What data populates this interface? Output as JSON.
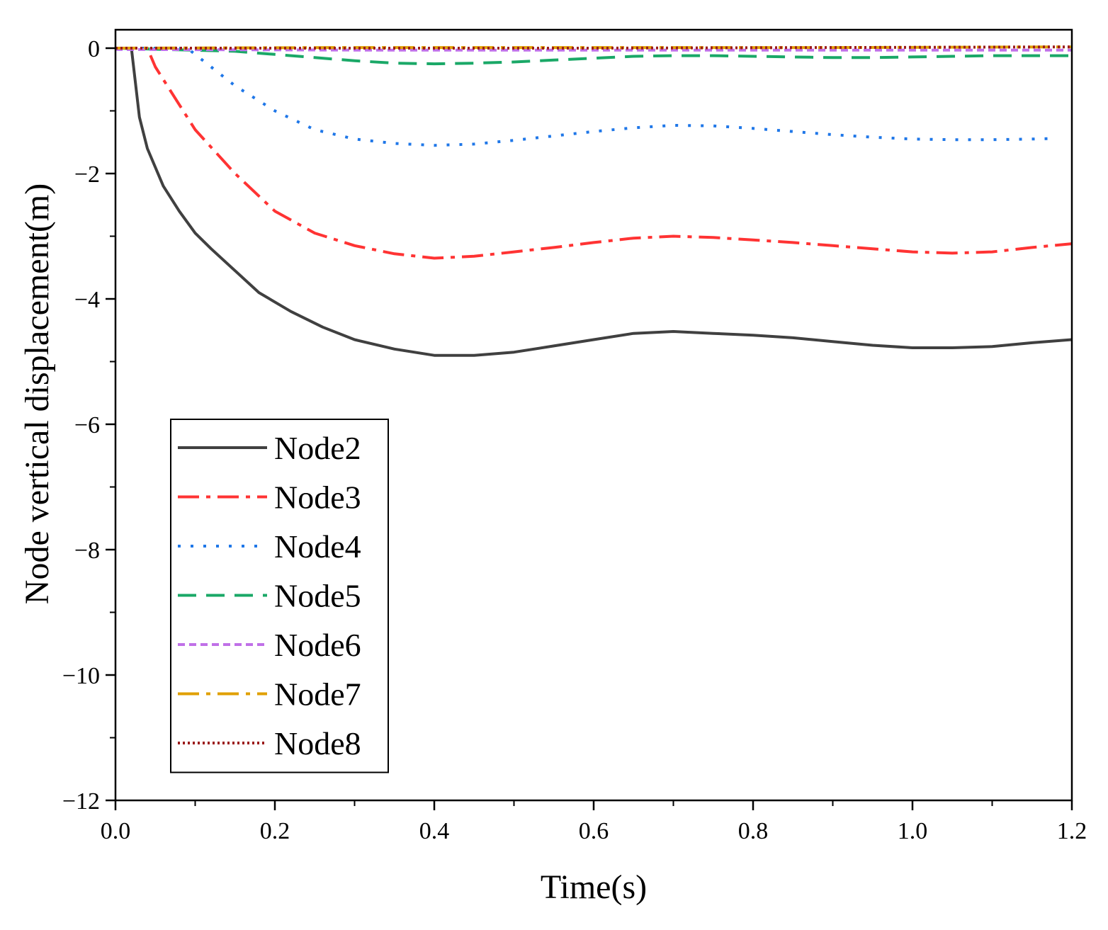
{
  "chart_data": {
    "type": "line",
    "title": "",
    "xlabel": "Time(s)",
    "ylabel": "Node vertical displacement(m)",
    "xlim": [
      0.0,
      1.2
    ],
    "ylim": [
      -12,
      0.4
    ],
    "grid": false,
    "legend_position": "bottom-left",
    "x_ticks": [
      {
        "value": 0.0,
        "label": "0.0"
      },
      {
        "value": 0.2,
        "label": "0.2"
      },
      {
        "value": 0.4,
        "label": "0.4"
      },
      {
        "value": 0.6,
        "label": "0.6"
      },
      {
        "value": 0.8,
        "label": "0.8"
      },
      {
        "value": 1.0,
        "label": "1.0"
      },
      {
        "value": 1.2,
        "label": "1.2"
      }
    ],
    "x_minor_ticks": [
      0.1,
      0.3,
      0.5,
      0.7,
      0.9,
      1.1
    ],
    "y_ticks": [
      {
        "value": 0,
        "label": "0"
      },
      {
        "value": -2,
        "label": "−2"
      },
      {
        "value": -4,
        "label": "−4"
      },
      {
        "value": -6,
        "label": "−6"
      },
      {
        "value": -8,
        "label": "−8"
      },
      {
        "value": -10,
        "label": "−10"
      },
      {
        "value": -12,
        "label": "−12"
      }
    ],
    "y_minor_ticks": [
      -1,
      -3,
      -5,
      -7,
      -9,
      -11
    ],
    "series": [
      {
        "name": "Node2",
        "color": "#404040",
        "dash": "solid",
        "x": [
          0.0,
          0.02,
          0.03,
          0.04,
          0.06,
          0.08,
          0.1,
          0.12,
          0.15,
          0.18,
          0.22,
          0.26,
          0.3,
          0.35,
          0.4,
          0.45,
          0.5,
          0.55,
          0.6,
          0.65,
          0.7,
          0.75,
          0.8,
          0.85,
          0.9,
          0.95,
          1.0,
          1.05,
          1.1,
          1.15,
          1.2
        ],
        "y": [
          0.0,
          0.0,
          -1.1,
          -1.6,
          -2.2,
          -2.6,
          -2.95,
          -3.2,
          -3.55,
          -3.9,
          -4.2,
          -4.45,
          -4.65,
          -4.8,
          -4.9,
          -4.9,
          -4.85,
          -4.75,
          -4.65,
          -4.55,
          -4.52,
          -4.55,
          -4.58,
          -4.62,
          -4.68,
          -4.74,
          -4.78,
          -4.78,
          -4.76,
          -4.7,
          -4.65
        ]
      },
      {
        "name": "Node3",
        "color": "#ff3333",
        "dash": "dashdot",
        "x": [
          0.0,
          0.04,
          0.05,
          0.08,
          0.1,
          0.15,
          0.2,
          0.25,
          0.3,
          0.35,
          0.4,
          0.45,
          0.5,
          0.55,
          0.6,
          0.65,
          0.7,
          0.75,
          0.8,
          0.85,
          0.9,
          0.95,
          1.0,
          1.05,
          1.1,
          1.15,
          1.2
        ],
        "y": [
          0.0,
          0.0,
          -0.3,
          -0.9,
          -1.3,
          -2.0,
          -2.6,
          -2.95,
          -3.15,
          -3.28,
          -3.35,
          -3.32,
          -3.25,
          -3.18,
          -3.1,
          -3.03,
          -3.0,
          -3.02,
          -3.06,
          -3.1,
          -3.15,
          -3.2,
          -3.25,
          -3.27,
          -3.25,
          -3.18,
          -3.12
        ]
      },
      {
        "name": "Node4",
        "color": "#1f77e8",
        "dash": "dot",
        "x": [
          0.0,
          0.09,
          0.12,
          0.15,
          0.2,
          0.25,
          0.3,
          0.35,
          0.4,
          0.45,
          0.5,
          0.55,
          0.6,
          0.65,
          0.7,
          0.75,
          0.8,
          0.85,
          0.9,
          0.95,
          1.0,
          1.05,
          1.1,
          1.15,
          1.18
        ],
        "y": [
          0.0,
          0.0,
          -0.3,
          -0.6,
          -1.0,
          -1.3,
          -1.45,
          -1.52,
          -1.55,
          -1.53,
          -1.47,
          -1.4,
          -1.33,
          -1.27,
          -1.23,
          -1.24,
          -1.28,
          -1.33,
          -1.38,
          -1.42,
          -1.45,
          -1.46,
          -1.46,
          -1.45,
          -1.44
        ]
      },
      {
        "name": "Node5",
        "color": "#1aa867",
        "dash": "dash",
        "x": [
          0.0,
          0.15,
          0.2,
          0.25,
          0.3,
          0.35,
          0.4,
          0.45,
          0.5,
          0.55,
          0.6,
          0.65,
          0.7,
          0.75,
          0.8,
          0.85,
          0.9,
          0.95,
          1.0,
          1.05,
          1.1,
          1.15,
          1.2
        ],
        "y": [
          0.0,
          -0.05,
          -0.1,
          -0.15,
          -0.2,
          -0.24,
          -0.25,
          -0.24,
          -0.22,
          -0.19,
          -0.16,
          -0.13,
          -0.12,
          -0.12,
          -0.13,
          -0.14,
          -0.15,
          -0.15,
          -0.14,
          -0.13,
          -0.12,
          -0.12,
          -0.12
        ]
      },
      {
        "name": "Node6",
        "color": "#c070e8",
        "dash": "shortdash",
        "x": [
          0.0,
          0.3,
          0.6,
          0.9,
          1.2
        ],
        "y": [
          -0.02,
          -0.03,
          -0.03,
          -0.03,
          -0.03
        ]
      },
      {
        "name": "Node7",
        "color": "#e0a000",
        "dash": "dashdot",
        "x": [
          0.0,
          0.3,
          0.6,
          0.9,
          1.2
        ],
        "y": [
          0.0,
          0.01,
          0.01,
          0.01,
          0.02
        ]
      },
      {
        "name": "Node8",
        "color": "#9b1b1b",
        "dash": "densedot",
        "x": [
          0.0,
          0.3,
          0.6,
          0.9,
          1.2
        ],
        "y": [
          0.0,
          0.0,
          0.0,
          0.01,
          0.02
        ]
      }
    ]
  }
}
